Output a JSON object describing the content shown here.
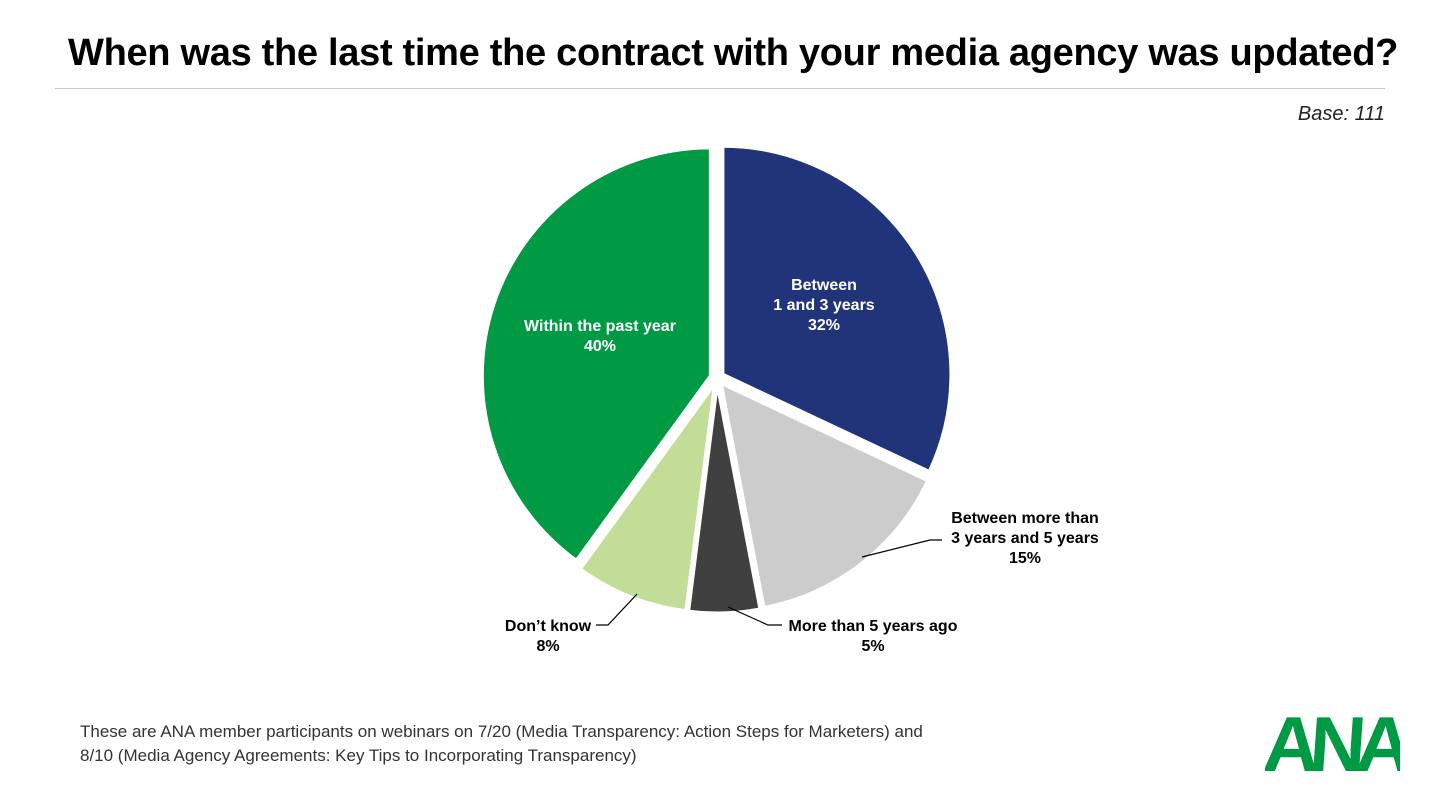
{
  "title": "When was the last time the contract with your media agency was updated?",
  "base": "Base: 111",
  "footnote": {
    "line1": "These are ANA member participants on webinars on 7/20 (Media Transparency: Action Steps for Marketers) and",
    "line2": "8/10 (Media Agency Agreements: Key Tips to Incorporating Transparency)"
  },
  "logo_text": "ANA",
  "colors": {
    "green": "#009a44",
    "navy": "#21347a",
    "light_gray": "#cccccc",
    "dark_gray": "#404040",
    "light_green": "#c2dd97",
    "logo_green": "#009a44"
  },
  "chart_data": {
    "type": "pie",
    "title": "When was the last time the contract with your media agency was updated?",
    "start": "12 o'clock, clockwise",
    "slices": [
      {
        "name": "Between 1 and 3 years",
        "label_lines": [
          "Between",
          "1 and 3 years"
        ],
        "value": 32,
        "value_label": "32%",
        "color": "#21347a",
        "label_position": "inside"
      },
      {
        "name": "Between more than 3 years and 5 years",
        "label_lines": [
          "Between more than",
          "3 years and 5 years"
        ],
        "value": 15,
        "value_label": "15%",
        "color": "#cccccc",
        "label_position": "outside-right"
      },
      {
        "name": "More than 5 years ago",
        "label_lines": [
          "More than 5 years ago"
        ],
        "value": 5,
        "value_label": "5%",
        "color": "#404040",
        "label_position": "outside-right"
      },
      {
        "name": "Don't know",
        "label_lines": [
          "Don’t know"
        ],
        "value": 8,
        "value_label": "8%",
        "color": "#c2dd97",
        "label_position": "outside-left"
      },
      {
        "name": "Within the past year",
        "label_lines": [
          "Within the past year"
        ],
        "value": 40,
        "value_label": "40%",
        "color": "#009a44",
        "label_position": "inside"
      }
    ]
  }
}
